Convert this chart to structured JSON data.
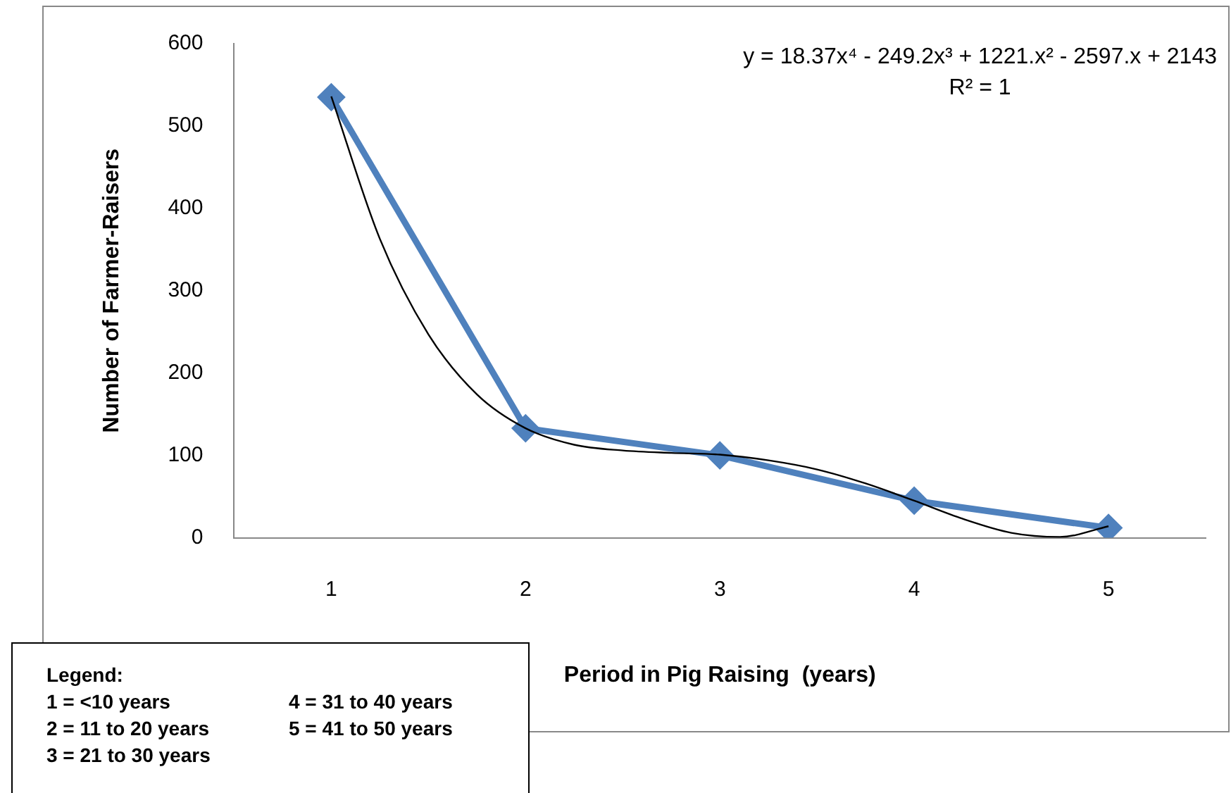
{
  "chart_data": {
    "type": "line",
    "xlabel": "Period in Pig Raising  (years)",
    "ylabel": "Number of Farmer-Raisers",
    "xlim": [
      0.5,
      5.5
    ],
    "xticks": [
      1,
      2,
      3,
      4,
      5
    ],
    "ylim": [
      0,
      600
    ],
    "yticks": [
      0,
      100,
      200,
      300,
      400,
      500,
      600
    ],
    "grid": false,
    "legend": false,
    "series": [
      {
        "color": "#4f81bd",
        "x": [
          1,
          2,
          3,
          4,
          5
        ],
        "values": [
          535,
          133,
          100,
          45,
          12
        ],
        "marker": "diamond",
        "line_style": "solid"
      },
      {
        "type": "line",
        "color": "#000000",
        "x": [
          1,
          1.25,
          1.5,
          1.75,
          2,
          2.25,
          2.5,
          2.75,
          3,
          3.25,
          3.5,
          3.75,
          4,
          4.25,
          4.5,
          4.75,
          5
        ],
        "values": [
          536,
          363,
          247,
          174,
          133,
          113,
          106,
          103,
          101,
          94,
          83,
          66,
          45,
          23,
          6,
          1,
          14
        ],
        "marker": "none",
        "line_style": "solid"
      }
    ],
    "annotations": [
      "y = 18.37x⁴ - 249.2x³ + 1221.x² - 2597.x + 2143",
      "R² = 1",
      "Legend:",
      "1 = <10 years",
      "2 = 11 to 20 years",
      "3 = 21 to 30 years",
      "4 = 31 to 40 years",
      "5 = 41 to 50 years"
    ]
  }
}
